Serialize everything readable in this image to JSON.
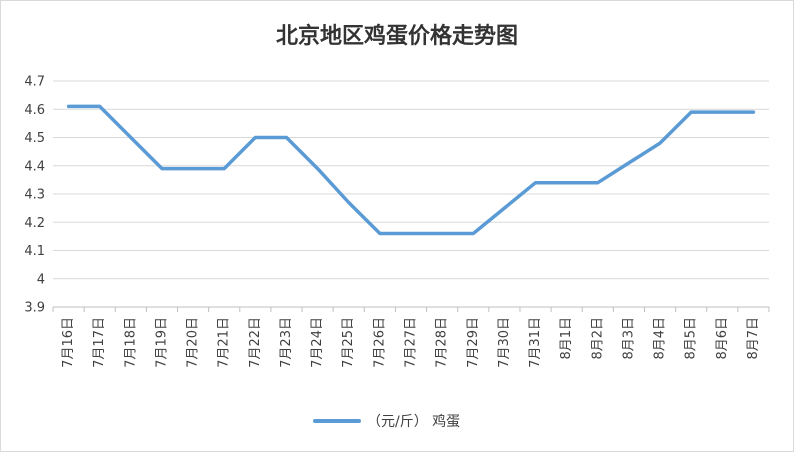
{
  "chart_data": {
    "type": "line",
    "title": "北京地区鸡蛋价格走势图",
    "categories": [
      "7月16日",
      "7月17日",
      "7月18日",
      "7月19日",
      "7月20日",
      "7月21日",
      "7月22日",
      "7月23日",
      "7月24日",
      "7月25日",
      "7月26日",
      "7月27日",
      "7月28日",
      "7月29日",
      "7月30日",
      "7月31日",
      "8月1日",
      "8月2日",
      "8月3日",
      "8月4日",
      "8月5日",
      "8月6日",
      "8月7日"
    ],
    "series": [
      {
        "name": "（元/斤） 鸡蛋",
        "color": "#5b9bd5",
        "values": [
          4.61,
          4.61,
          4.5,
          4.39,
          4.39,
          4.39,
          4.5,
          4.5,
          4.39,
          4.27,
          4.16,
          4.16,
          4.16,
          4.16,
          4.25,
          4.34,
          4.34,
          4.34,
          4.41,
          4.48,
          4.59,
          4.59,
          4.59
        ]
      }
    ],
    "ylim": [
      3.9,
      4.7
    ],
    "yticks": [
      "3.9",
      "4",
      "4.1",
      "4.2",
      "4.3",
      "4.4",
      "4.5",
      "4.6",
      "4.7"
    ],
    "grid": true,
    "legend_position": "bottom"
  }
}
